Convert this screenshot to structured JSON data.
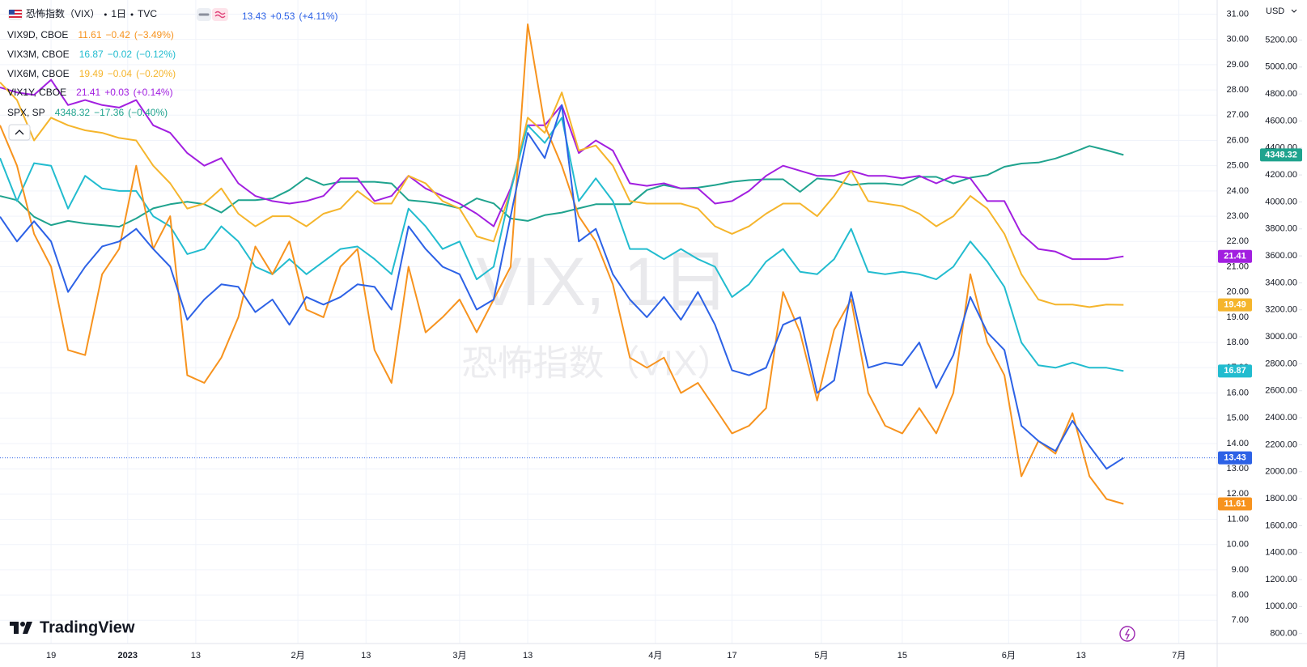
{
  "chart_data": {
    "type": "line",
    "title": "恐怖指数（VIX）",
    "interval": "1日",
    "exchange": "TVC",
    "watermark": [
      "VIX, 1日",
      "恐怖指数（VIX）"
    ],
    "brand": "TradingView",
    "currency": "USD",
    "grid": true,
    "x": [
      0,
      2,
      4,
      6,
      8,
      10,
      12,
      14,
      16,
      18,
      20,
      22,
      24,
      26,
      28,
      30,
      32,
      34,
      36,
      38,
      40,
      42,
      44,
      46,
      48,
      50,
      52,
      54,
      56,
      58,
      60,
      62,
      64,
      66,
      68,
      70,
      72,
      74,
      76,
      78,
      80,
      82,
      84,
      86,
      88,
      90,
      92,
      94,
      96,
      98,
      100,
      102,
      104,
      106,
      108,
      110,
      112,
      114,
      116,
      118,
      120,
      122,
      124,
      126,
      128,
      130,
      132
    ],
    "xlim": [
      0,
      143
    ],
    "xticks": [
      {
        "value": 6,
        "label": "19"
      },
      {
        "value": 15,
        "label": "2023"
      },
      {
        "value": 23,
        "label": "13"
      },
      {
        "value": 35,
        "label": "2月"
      },
      {
        "value": 43,
        "label": "13"
      },
      {
        "value": 54,
        "label": "3月"
      },
      {
        "value": 62,
        "label": "13"
      },
      {
        "value": 77,
        "label": "4月"
      },
      {
        "value": 86,
        "label": "17"
      },
      {
        "value": 96.5,
        "label": "5月"
      },
      {
        "value": 106,
        "label": "15"
      },
      {
        "value": 118.5,
        "label": "6月"
      },
      {
        "value": 127,
        "label": "13"
      },
      {
        "value": 138.5,
        "label": "7月"
      }
    ],
    "ylim": [
      6.08,
      31.56
    ],
    "yticks": [
      {
        "value": 7,
        "label": "7.00"
      },
      {
        "value": 8,
        "label": "8.00"
      },
      {
        "value": 9,
        "label": "9.00"
      },
      {
        "value": 10,
        "label": "10.00"
      },
      {
        "value": 11,
        "label": "11.00"
      },
      {
        "value": 12,
        "label": "12.00"
      },
      {
        "value": 13,
        "label": "13.00"
      },
      {
        "value": 14,
        "label": "14.00"
      },
      {
        "value": 15,
        "label": "15.00"
      },
      {
        "value": 16,
        "label": "16.00"
      },
      {
        "value": 17,
        "label": "17.00"
      },
      {
        "value": 18,
        "label": "18.00"
      },
      {
        "value": 19,
        "label": "19.00"
      },
      {
        "value": 20,
        "label": "20.00"
      },
      {
        "value": 21,
        "label": "21.00"
      },
      {
        "value": 22,
        "label": "22.00"
      },
      {
        "value": 23,
        "label": "23.00"
      },
      {
        "value": 24,
        "label": "24.00"
      },
      {
        "value": 25,
        "label": "25.00"
      },
      {
        "value": 26,
        "label": "26.00"
      },
      {
        "value": 27,
        "label": "27.00"
      },
      {
        "value": 28,
        "label": "28.00"
      },
      {
        "value": 29,
        "label": "29.00"
      },
      {
        "value": 30,
        "label": "30.00"
      },
      {
        "value": 31,
        "label": "31.00"
      }
    ],
    "y2lim": [
      726,
      5497
    ],
    "y2ticks": [
      {
        "value": 800,
        "label": "800.00"
      },
      {
        "value": 1000,
        "label": "1000.00"
      },
      {
        "value": 1200,
        "label": "1200.00"
      },
      {
        "value": 1400,
        "label": "1400.00"
      },
      {
        "value": 1600,
        "label": "1600.00"
      },
      {
        "value": 1800,
        "label": "1800.00"
      },
      {
        "value": 2000,
        "label": "2000.00"
      },
      {
        "value": 2200,
        "label": "2200.00"
      },
      {
        "value": 2400,
        "label": "2400.00"
      },
      {
        "value": 2600,
        "label": "2600.00"
      },
      {
        "value": 2800,
        "label": "2800.00"
      },
      {
        "value": 3000,
        "label": "3000.00"
      },
      {
        "value": 3200,
        "label": "3200.00"
      },
      {
        "value": 3400,
        "label": "3400.00"
      },
      {
        "value": 3600,
        "label": "3600.00"
      },
      {
        "value": 3800,
        "label": "3800.00"
      },
      {
        "value": 4000,
        "label": "4000.00"
      },
      {
        "value": 4200,
        "label": "4200.00"
      },
      {
        "value": 4400,
        "label": "4400.00"
      },
      {
        "value": 4600,
        "label": "4600.00"
      },
      {
        "value": 4800,
        "label": "4800.00"
      },
      {
        "value": 5000,
        "label": "5000.00"
      },
      {
        "value": 5200,
        "label": "5200.00"
      }
    ],
    "series": [
      {
        "color": "#2d62e6",
        "quote": [
          "13.43",
          "+0.53",
          "(+4.11%)"
        ],
        "values": [
          22.98,
          22.0,
          22.8,
          22.0,
          20.0,
          21.0,
          21.8,
          22.0,
          22.5,
          21.7,
          21.0,
          18.9,
          19.7,
          20.3,
          20.2,
          19.2,
          19.7,
          18.7,
          19.8,
          19.5,
          19.8,
          20.3,
          20.2,
          19.3,
          22.6,
          21.7,
          21.0,
          20.7,
          19.3,
          19.7,
          23.0,
          26.3,
          25.3,
          27.4,
          22.0,
          22.5,
          20.7,
          19.7,
          19.0,
          19.8,
          18.9,
          20.0,
          18.7,
          16.9,
          16.7,
          17.0,
          18.7,
          19.0,
          16.0,
          16.5,
          20.0,
          17.0,
          17.2,
          17.1,
          18.0,
          16.2,
          17.5,
          19.8,
          18.4,
          17.7,
          14.7,
          14.1,
          13.7,
          14.9,
          13.9,
          13.0,
          13.43
        ]
      },
      {
        "name": "VIX9D, CBOE",
        "color": "#f7931e",
        "quote": [
          "11.61",
          "−0.42",
          "(−3.49%)"
        ],
        "values": [
          26.6,
          25.0,
          22.3,
          21.0,
          17.7,
          17.5,
          20.7,
          21.7,
          25.0,
          21.7,
          23.0,
          16.7,
          16.4,
          17.4,
          19.0,
          21.8,
          20.7,
          22.0,
          19.3,
          19.0,
          21.0,
          21.7,
          17.7,
          16.4,
          21.0,
          18.4,
          19.0,
          19.7,
          18.4,
          19.7,
          21.0,
          30.6,
          26.6,
          25.0,
          23.0,
          22.0,
          20.3,
          17.4,
          17.0,
          17.4,
          16.0,
          16.4,
          15.4,
          14.4,
          14.7,
          15.4,
          20.0,
          18.4,
          15.7,
          18.5,
          19.7,
          16.0,
          14.7,
          14.4,
          15.4,
          14.4,
          16.0,
          20.7,
          18.0,
          16.7,
          12.7,
          14.1,
          13.6,
          15.2,
          12.7,
          11.8,
          11.61
        ]
      },
      {
        "name": "VIX3M, CBOE",
        "color": "#22bccf",
        "quote": [
          "16.87",
          "−0.02",
          "(−0.12%)"
        ],
        "values": [
          25.3,
          23.6,
          25.1,
          25.0,
          23.3,
          24.6,
          24.1,
          24.0,
          24.0,
          23.0,
          22.6,
          21.5,
          21.7,
          22.6,
          22.0,
          21.0,
          20.7,
          21.3,
          20.7,
          21.2,
          21.7,
          21.8,
          21.3,
          20.7,
          23.3,
          22.6,
          21.7,
          22.0,
          20.5,
          21.0,
          24.0,
          26.6,
          25.9,
          26.9,
          23.6,
          24.5,
          23.6,
          21.7,
          21.7,
          21.3,
          21.7,
          21.3,
          21.0,
          19.8,
          20.3,
          21.2,
          21.7,
          20.8,
          20.7,
          21.3,
          22.5,
          20.8,
          20.7,
          20.8,
          20.7,
          20.5,
          21.0,
          22.0,
          21.2,
          20.2,
          18.0,
          17.1,
          17.0,
          17.2,
          17.0,
          17.0,
          16.87
        ]
      },
      {
        "name": "VIX6M, CBOE",
        "color": "#f5b52c",
        "quote": [
          "19.49",
          "−0.04",
          "(−0.20%)"
        ],
        "values": [
          28.3,
          27.6,
          26.0,
          26.9,
          26.6,
          26.4,
          26.3,
          26.1,
          26.0,
          25.0,
          24.3,
          23.3,
          23.5,
          24.1,
          23.1,
          22.6,
          23.0,
          23.0,
          22.6,
          23.1,
          23.3,
          24.0,
          23.5,
          23.5,
          24.6,
          24.3,
          23.6,
          23.3,
          22.2,
          22.0,
          24.0,
          26.9,
          26.3,
          27.9,
          25.6,
          25.8,
          25.0,
          23.6,
          23.5,
          23.5,
          23.5,
          23.3,
          22.6,
          22.3,
          22.6,
          23.1,
          23.5,
          23.5,
          23.0,
          23.8,
          24.8,
          23.6,
          23.5,
          23.4,
          23.1,
          22.6,
          23.0,
          23.8,
          23.3,
          22.3,
          20.7,
          19.7,
          19.5,
          19.5,
          19.4,
          19.5,
          19.49
        ]
      },
      {
        "name": "VIX1Y, CBOE",
        "color": "#a21fe0",
        "quote": [
          "21.41",
          "+0.03",
          "(+0.14%)"
        ],
        "values": [
          28.1,
          27.9,
          27.8,
          28.4,
          27.4,
          27.6,
          27.4,
          27.3,
          27.6,
          26.6,
          26.3,
          25.5,
          25.0,
          25.3,
          24.3,
          23.8,
          23.6,
          23.5,
          23.6,
          23.8,
          24.5,
          24.5,
          23.6,
          23.8,
          24.6,
          24.1,
          23.8,
          23.5,
          23.1,
          22.6,
          24.1,
          26.6,
          26.6,
          27.4,
          25.5,
          26.0,
          25.6,
          24.3,
          24.2,
          24.3,
          24.1,
          24.1,
          23.5,
          23.6,
          24.0,
          24.6,
          25.0,
          24.8,
          24.6,
          24.6,
          24.8,
          24.6,
          24.6,
          24.5,
          24.6,
          24.3,
          24.6,
          24.5,
          23.6,
          23.6,
          22.3,
          21.7,
          21.6,
          21.3,
          21.3,
          21.3,
          21.41
        ]
      },
      {
        "name": "SPX, SP",
        "color": "#1fa38e",
        "axis": "y2",
        "quote": [
          "4348.32",
          "−17.36",
          "(−0.40%)"
        ],
        "values": [
          4044,
          4013,
          3890,
          3828,
          3859,
          3840,
          3828,
          3816,
          3877,
          3952,
          3983,
          4001,
          3983,
          3921,
          4013,
          4013,
          4026,
          4088,
          4180,
          4125,
          4149,
          4149,
          4149,
          4137,
          4013,
          4001,
          3983,
          3952,
          4026,
          3989,
          3877,
          3859,
          3902,
          3921,
          3952,
          3983,
          3983,
          3983,
          4088,
          4125,
          4100,
          4106,
          4125,
          4149,
          4162,
          4168,
          4168,
          4075,
          4174,
          4162,
          4125,
          4137,
          4137,
          4125,
          4186,
          4186,
          4137,
          4180,
          4199,
          4261,
          4285,
          4292,
          4322,
          4366,
          4415,
          4384,
          4348.32
        ]
      }
    ]
  }
}
